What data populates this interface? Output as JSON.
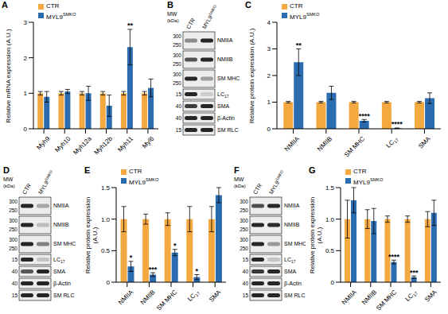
{
  "chart_data": [
    {
      "panel": "A",
      "type": "bar",
      "ylabel": "Relative mRNA expression (A.U.)",
      "categories": [
        "Myh9",
        "Myh10",
        "Myh12a",
        "Myh12b",
        "Myh11",
        "Myl6"
      ],
      "series": [
        {
          "name": "CTR",
          "color": "#f4a940",
          "values": [
            1,
            1,
            1,
            1,
            1,
            1
          ],
          "errors": [
            0.05,
            0.05,
            0.05,
            0.05,
            0.05,
            0.05
          ]
        },
        {
          "name": "MYL9SMKO",
          "color": "#2b6cb0",
          "values": [
            0.9,
            1.05,
            1.0,
            0.65,
            2.3,
            1.15
          ],
          "errors": [
            0.15,
            0.06,
            0.2,
            0.3,
            0.5,
            0.25
          ],
          "significance": [
            null,
            null,
            null,
            null,
            "**",
            null
          ]
        }
      ],
      "ylim": [
        0,
        3
      ],
      "yticks": [
        0,
        1,
        2,
        3
      ],
      "legend": "top-left"
    },
    {
      "panel": "C",
      "type": "bar",
      "ylabel": "Relative protein expression (A.U.)",
      "categories": [
        "NMIIA",
        "NMIIB",
        "SM MHC",
        "LC17",
        "SMA"
      ],
      "series": [
        {
          "name": "CTR",
          "color": "#f4a940",
          "values": [
            1,
            1,
            1,
            1,
            1
          ],
          "errors": [
            0.03,
            0.03,
            0.03,
            0.03,
            0.03
          ]
        },
        {
          "name": "MYL9SMKO",
          "color": "#2b6cb0",
          "values": [
            2.5,
            1.35,
            0.3,
            0.02,
            1.15
          ],
          "errors": [
            0.5,
            0.25,
            0.05,
            0.01,
            0.2
          ],
          "significance": [
            "**",
            null,
            "****",
            "****",
            null
          ]
        }
      ],
      "ylim": [
        0,
        4
      ],
      "yticks": [
        0,
        1,
        2,
        3,
        4
      ],
      "legend": "top-left"
    },
    {
      "panel": "E",
      "type": "bar",
      "ylabel": "Relative protein expression (A.U.)",
      "categories": [
        "NMIIA",
        "NMIIB",
        "SM MHC",
        "LC17",
        "SMA"
      ],
      "series": [
        {
          "name": "CTR",
          "color": "#f4a940",
          "values": [
            1,
            1,
            1,
            1,
            1
          ],
          "errors": [
            0.2,
            0.08,
            0.1,
            0.2,
            0.2
          ]
        },
        {
          "name": "MYL9SMKO",
          "color": "#2b6cb0",
          "values": [
            0.25,
            0.12,
            0.47,
            0.08,
            1.38
          ],
          "errors": [
            0.08,
            0.03,
            0.05,
            0.04,
            0.12
          ],
          "significance": [
            "*",
            "***",
            "*",
            "*",
            null
          ]
        }
      ],
      "ylim": [
        0,
        1.5
      ],
      "yticks": [
        0,
        0.5,
        {
          "value": 1,
          "label": "1.0"
        },
        1.5
      ],
      "legend": "top-left"
    },
    {
      "panel": "G",
      "type": "bar",
      "ylabel": "Relative protein expression (A.U.)",
      "categories": [
        "NMIIA",
        "NMIIB",
        "SM MHC",
        "LC17",
        "SMA"
      ],
      "series": [
        {
          "name": "CTR",
          "color": "#f4a940",
          "values": [
            1,
            1,
            1,
            1,
            1
          ],
          "errors": [
            0.3,
            0.15,
            0.05,
            0.05,
            0.12
          ]
        },
        {
          "name": "MYL9SMKO",
          "color": "#2b6cb0",
          "values": [
            1.3,
            0.97,
            0.32,
            0.08,
            1.1
          ],
          "errors": [
            0.2,
            0.2,
            0.03,
            0.02,
            0.2
          ],
          "significance": [
            null,
            null,
            "****",
            "***",
            null
          ]
        }
      ],
      "ylim": [
        0,
        1.5
      ],
      "yticks": [
        0,
        0.5,
        {
          "value": 1,
          "label": "1.0"
        },
        1.5
      ],
      "legend": "top-left"
    }
  ],
  "blots": [
    {
      "panel": "B",
      "mw_label": "MW",
      "mw_unit": "(kDa)",
      "lanes": [
        "CTR",
        "MYL9SMKO"
      ],
      "rows": [
        {
          "label": "NMIIA",
          "mw": [
            300,
            250
          ]
        },
        {
          "label": "NMIIB",
          "mw": [
            300,
            250
          ]
        },
        {
          "label": "SM MHC",
          "mw": [
            300,
            250
          ]
        },
        {
          "label": "LC17",
          "mw": [
            15
          ]
        },
        {
          "label": "SMA",
          "mw": [
            40
          ]
        },
        {
          "label": "β-Actin",
          "mw": [
            40
          ]
        },
        {
          "label": "SM RLC",
          "mw": [
            15
          ]
        }
      ]
    },
    {
      "panel": "D",
      "mw_label": "MW",
      "mw_unit": "(kDa)",
      "lanes": [
        "CTR",
        "MYL9SMKO"
      ],
      "rows": [
        {
          "label": "NMIIA",
          "mw": [
            300,
            250
          ]
        },
        {
          "label": "NMIIB",
          "mw": [
            300,
            250
          ]
        },
        {
          "label": "SM MHC",
          "mw": [
            300,
            250
          ]
        },
        {
          "label": "LC17",
          "mw": [
            15
          ]
        },
        {
          "label": "SMA",
          "mw": [
            40
          ]
        },
        {
          "label": "β-Actin",
          "mw": [
            40
          ]
        },
        {
          "label": "SM RLC",
          "mw": [
            15
          ]
        }
      ]
    },
    {
      "panel": "F",
      "mw_label": "MW",
      "mw_unit": "(kDa)",
      "lanes": [
        "CTR",
        "MYL9SMKO"
      ],
      "rows": [
        {
          "label": "NMIIA",
          "mw": [
            300,
            250
          ]
        },
        {
          "label": "NMIIB",
          "mw": [
            300,
            250
          ]
        },
        {
          "label": "SM MHC",
          "mw": [
            300,
            250
          ]
        },
        {
          "label": "LC17",
          "mw": [
            15
          ]
        },
        {
          "label": "SMA",
          "mw": [
            40
          ]
        },
        {
          "label": "β-Actin",
          "mw": [
            40
          ]
        },
        {
          "label": "SM RLC",
          "mw": [
            15
          ]
        }
      ]
    }
  ]
}
